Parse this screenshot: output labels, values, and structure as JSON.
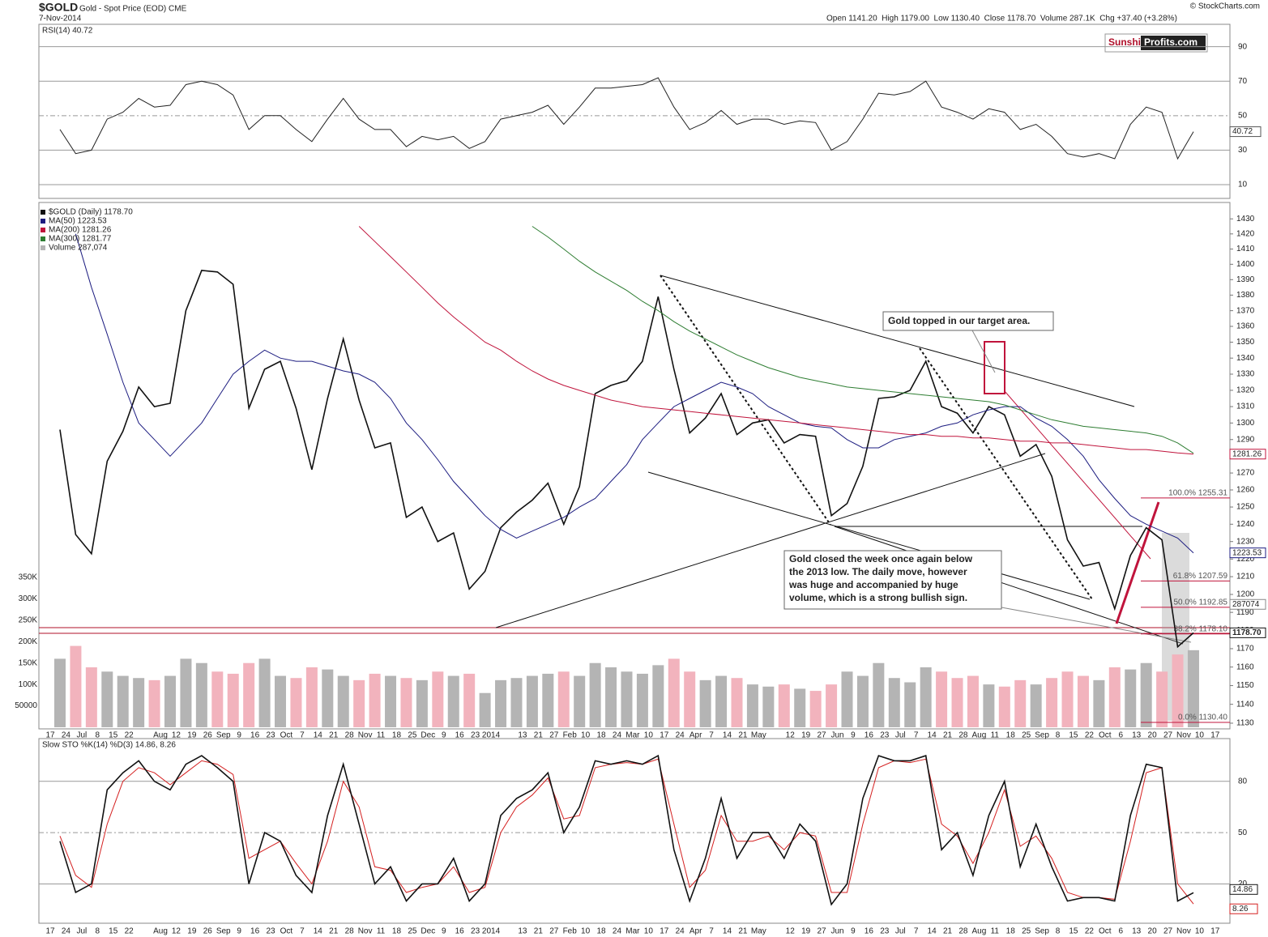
{
  "chart_data": {
    "type": "line",
    "title": "$GOLD",
    "subtitle": "Gold - Spot Price (EOD) CME",
    "date": "7-Nov-2014",
    "quote": "Open 1141.20  High 1179.00  Low 1130.40  Close 1178.70  Volume 287.1K  Chg +37.40 (+3.28%)",
    "source": "© StockCharts.com",
    "logo": [
      "Sunshi",
      "Profits.com"
    ],
    "log": true,
    "categories": [
      "17",
      "24",
      "Jul",
      "8",
      "15",
      "22",
      null,
      "Aug",
      "12",
      "19",
      "26",
      "Sep",
      "9",
      "16",
      "23",
      "Oct",
      "7",
      "14",
      "21",
      "28",
      "Nov",
      "11",
      "18",
      "25",
      "Dec",
      "9",
      "16",
      "23",
      "2014",
      null,
      "13",
      "21",
      "27",
      "Feb",
      "10",
      "18",
      "24",
      "Mar",
      "10",
      "17",
      "24",
      "Apr",
      "7",
      "14",
      "21",
      "May",
      null,
      "12",
      "19",
      "27",
      "Jun",
      "9",
      "16",
      "23",
      "Jul",
      "7",
      "14",
      "21",
      "28",
      "Aug",
      "11",
      "18",
      "25",
      "Sep",
      "8",
      "15",
      "22",
      "Oct",
      "6",
      "13",
      "20",
      "27",
      "Nov",
      "10",
      "17"
    ],
    "ylim": [
      1127,
      1441
    ],
    "yticks": [
      1130,
      1140,
      1150,
      1160,
      1170,
      1180,
      1190,
      1200,
      1210,
      1220,
      1230,
      1240,
      1250,
      1260,
      1270,
      1280,
      1290,
      1300,
      1310,
      1320,
      1330,
      1340,
      1350,
      1360,
      1370,
      1380,
      1390,
      1400,
      1410,
      1420,
      1430
    ],
    "series": [
      {
        "name": "$GOLD (Daily) 1178.70",
        "color": "#111111",
        "values": [
          1296,
          1234,
          1223,
          1277,
          1295,
          1322,
          1310,
          1312,
          1370,
          1396,
          1395,
          1387,
          1309,
          1333,
          1338,
          1309,
          1272,
          1315,
          1352,
          1314,
          1285,
          1288,
          1244,
          1250,
          1230,
          1235,
          1203,
          1213,
          1238,
          1247,
          1254,
          1264,
          1240,
          1262,
          1318,
          1323,
          1326,
          1338,
          1379,
          1333,
          1294,
          1303,
          1318,
          1293,
          1300,
          1302,
          1288,
          1293,
          1292,
          1245,
          1252,
          1274,
          1315,
          1316,
          1320,
          1338,
          1310,
          1306,
          1294,
          1310,
          1305,
          1280,
          1287,
          1268,
          1231,
          1216,
          1218,
          1192,
          1222,
          1238,
          1231,
          1171,
          1178.7,
          null,
          null
        ]
      },
      {
        "name": "MA(50) 1223.53",
        "color": "#1c1c80",
        "values": [
          null,
          1420,
          1385,
          1355,
          1325,
          1300,
          1290,
          1280,
          1290,
          1300,
          1315,
          1330,
          1338,
          1345,
          1340,
          1338,
          1338,
          1335,
          1332,
          1330,
          1325,
          1315,
          1300,
          1290,
          1278,
          1265,
          1255,
          1245,
          1237,
          1232,
          1236,
          1240,
          1244,
          1250,
          1255,
          1265,
          1275,
          1290,
          1300,
          1310,
          1315,
          1320,
          1325,
          1322,
          1318,
          1310,
          1305,
          1300,
          1298,
          1297,
          1290,
          1285,
          1285,
          1290,
          1292,
          1294,
          1298,
          1300,
          1305,
          1308,
          1310,
          1310,
          1303,
          1298,
          1290,
          1280,
          1266,
          1255,
          1245,
          1240,
          1236,
          1232,
          1223.53,
          null,
          null
        ]
      },
      {
        "name": "MA(200) 1281.26",
        "color": "#c0143c",
        "values": [
          null,
          null,
          null,
          null,
          null,
          null,
          null,
          null,
          null,
          null,
          null,
          null,
          null,
          null,
          null,
          null,
          null,
          null,
          null,
          1425,
          1415,
          1405,
          1395,
          1385,
          1375,
          1366,
          1358,
          1350,
          1345,
          1338,
          1332,
          1327,
          1323,
          1320,
          1317,
          1314,
          1312,
          1310,
          1309,
          1308,
          1307,
          1306,
          1305,
          1304,
          1303,
          1302,
          1301,
          1300,
          1299,
          1298,
          1297,
          1296,
          1295,
          1294,
          1293,
          1293,
          1292,
          1292,
          1291,
          1291,
          1290,
          1289,
          1289,
          1288,
          1288,
          1287,
          1286,
          1285,
          1284,
          1284,
          1283,
          1282,
          1281.26,
          null,
          null
        ]
      },
      {
        "name": "MA(300) 1281.77",
        "color": "#2e7d32",
        "values": [
          null,
          null,
          null,
          null,
          null,
          null,
          null,
          null,
          null,
          null,
          null,
          null,
          null,
          null,
          null,
          null,
          null,
          null,
          null,
          null,
          null,
          null,
          null,
          null,
          null,
          null,
          null,
          null,
          null,
          null,
          1425,
          1418,
          1410,
          1402,
          1395,
          1389,
          1383,
          1376,
          1370,
          1363,
          1357,
          1352,
          1347,
          1342,
          1338,
          1334,
          1331,
          1328,
          1326,
          1324,
          1322,
          1321,
          1320,
          1319,
          1318,
          1317,
          1316,
          1315,
          1314,
          1313,
          1311,
          1308,
          1305,
          1302,
          1300,
          1298,
          1297,
          1296,
          1295,
          1294,
          1292,
          1288,
          1281.77,
          null,
          null
        ]
      }
    ],
    "price_tags": [
      1281.26,
      1223.53,
      {
        "value": 1178.7,
        "label": "1178.70"
      }
    ],
    "fib": [
      {
        "value": 1255.31,
        "label": "100.0% 1255.31"
      },
      {
        "value": 1207.59,
        "label": "61.8% 1207.59"
      },
      {
        "value": 1192.85,
        "label": "50.0% 1192.85"
      },
      {
        "value": 1178.1,
        "label": "38.2% 1178.10"
      },
      {
        "value": 1130.4,
        "label": "0.0% 1130.40"
      }
    ],
    "volume": {
      "name": "Volume 287,074",
      "up_color": "#b4b4b4",
      "down_color": "#f2b3bd",
      "ylim": [
        0,
        350000
      ],
      "yticks": [
        50000,
        {
          "value": 100000,
          "label": "100K"
        },
        {
          "value": 150000,
          "label": "150K"
        },
        {
          "value": 200000,
          "label": "200K"
        },
        {
          "value": 250000,
          "label": "250K"
        },
        {
          "value": 300000,
          "label": "300K"
        },
        {
          "value": 350000,
          "label": "350K"
        }
      ],
      "tag": 287074,
      "values": [
        160000,
        190000,
        140000,
        130000,
        120000,
        115000,
        110000,
        120000,
        160000,
        150000,
        130000,
        125000,
        150000,
        160000,
        120000,
        115000,
        140000,
        135000,
        120000,
        110000,
        125000,
        120000,
        115000,
        110000,
        130000,
        120000,
        125000,
        80000,
        110000,
        115000,
        120000,
        125000,
        130000,
        120000,
        150000,
        140000,
        130000,
        125000,
        145000,
        160000,
        130000,
        110000,
        120000,
        115000,
        100000,
        95000,
        100000,
        90000,
        85000,
        100000,
        130000,
        120000,
        150000,
        115000,
        105000,
        140000,
        130000,
        115000,
        120000,
        100000,
        95000,
        110000,
        100000,
        115000,
        130000,
        120000,
        110000,
        140000,
        135000,
        150000,
        130000,
        170000,
        180000,
        null,
        null
      ]
    },
    "rsi": {
      "name": "RSI(14) 40.72",
      "color": "#222222",
      "ylim": [
        2,
        103
      ],
      "yticks": [
        10,
        30,
        50,
        70,
        90
      ],
      "tag": 40.72,
      "values": [
        42,
        28,
        30,
        48,
        52,
        60,
        55,
        56,
        68,
        70,
        68,
        62,
        42,
        50,
        50,
        42,
        35,
        48,
        60,
        48,
        42,
        42,
        32,
        38,
        36,
        38,
        31,
        35,
        48,
        50,
        52,
        56,
        45,
        55,
        66,
        66,
        67,
        68,
        72,
        55,
        42,
        46,
        53,
        45,
        48,
        48,
        45,
        47,
        46,
        30,
        35,
        48,
        63,
        62,
        64,
        70,
        55,
        52,
        48,
        54,
        52,
        42,
        45,
        38,
        28,
        26,
        28,
        25,
        45,
        55,
        52,
        25,
        40.72,
        null,
        null
      ]
    },
    "sto": {
      "name": "Slow STO %K(14) %D(3) 14.86, 8.26",
      "ylim": [
        -3,
        105
      ],
      "yticks": [
        20,
        50,
        80
      ],
      "tags": [
        14.86,
        8.26
      ],
      "colors": [
        "#111111",
        "#d42020"
      ],
      "k": [
        45,
        15,
        20,
        75,
        85,
        92,
        80,
        75,
        90,
        95,
        88,
        80,
        20,
        50,
        45,
        25,
        15,
        60,
        90,
        55,
        20,
        30,
        10,
        20,
        20,
        35,
        10,
        20,
        60,
        70,
        75,
        85,
        50,
        65,
        92,
        90,
        92,
        90,
        95,
        40,
        10,
        35,
        70,
        35,
        50,
        50,
        35,
        55,
        45,
        8,
        20,
        70,
        95,
        92,
        92,
        95,
        40,
        50,
        25,
        60,
        80,
        30,
        55,
        30,
        10,
        12,
        12,
        10,
        60,
        90,
        88,
        10,
        14.86,
        null,
        null
      ],
      "d": [
        48,
        25,
        18,
        55,
        80,
        88,
        85,
        78,
        85,
        92,
        90,
        84,
        35,
        40,
        45,
        32,
        20,
        45,
        80,
        65,
        30,
        28,
        15,
        18,
        20,
        30,
        15,
        18,
        50,
        65,
        72,
        82,
        58,
        60,
        88,
        90,
        91,
        90,
        93,
        55,
        18,
        28,
        60,
        45,
        45,
        48,
        40,
        50,
        48,
        15,
        15,
        55,
        88,
        92,
        91,
        93,
        55,
        48,
        32,
        50,
        75,
        42,
        48,
        35,
        15,
        12,
        12,
        11,
        45,
        85,
        88,
        20,
        8.26,
        null,
        null
      ]
    },
    "annotations": [
      {
        "lines": [
          "Gold topped in our target area."
        ]
      },
      {
        "lines": [
          "Gold closed the week once again below",
          "the 2013 low. The daily move, however",
          "was huge and accompanied by huge",
          "volume, which is a strong bullish sign."
        ]
      }
    ]
  }
}
